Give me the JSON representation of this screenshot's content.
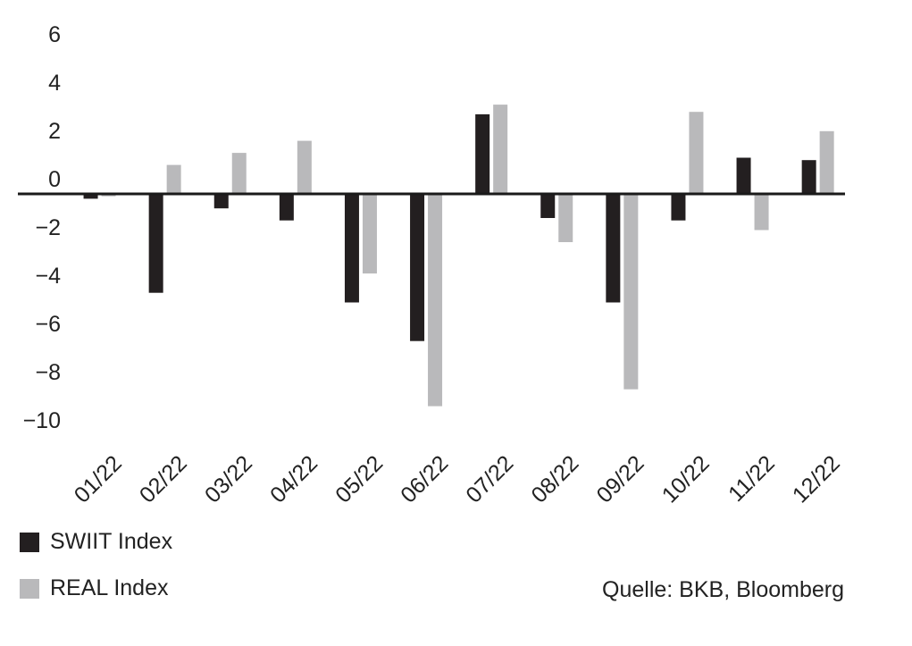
{
  "chart_data": {
    "type": "bar",
    "categories": [
      "01/22",
      "02/22",
      "03/22",
      "04/22",
      "05/22",
      "06/22",
      "07/22",
      "08/22",
      "09/22",
      "10/22",
      "11/22",
      "12/22"
    ],
    "series": [
      {
        "name": "SWIIT Index",
        "color": "#231f20",
        "values": [
          -0.2,
          -4.1,
          -0.6,
          -1.1,
          -4.5,
          -6.1,
          3.3,
          -1.0,
          -4.5,
          -1.1,
          1.5,
          1.4
        ]
      },
      {
        "name": "REAL Index",
        "color": "#b9b9bb",
        "values": [
          -0.1,
          1.2,
          1.7,
          2.2,
          -3.3,
          -8.8,
          3.7,
          -2.0,
          -8.1,
          3.4,
          -1.5,
          2.6
        ]
      }
    ],
    "ylim": [
      -10,
      6
    ],
    "yticks": [
      "6",
      "4",
      "2",
      "0",
      "−2",
      "−4",
      "−6",
      "−8",
      "−10"
    ],
    "ytick_values": [
      6,
      4,
      2,
      0,
      -2,
      -4,
      -6,
      -8,
      -10
    ],
    "xlabel": "",
    "ylabel": "",
    "legend_position": "bottom-left"
  },
  "source": "Quelle: BKB, Bloomberg"
}
